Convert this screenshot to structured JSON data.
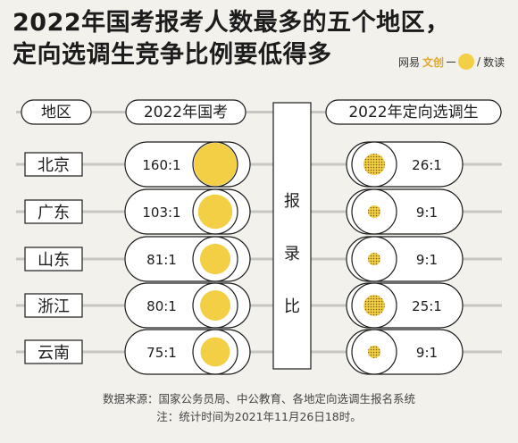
{
  "title_lines": [
    "2022年国考报考人数最多的五个地区，",
    "定向选调生竞争比例要低得多"
  ],
  "brand": {
    "text_left": "网易",
    "text_mid": "文创",
    "text_right": "数读"
  },
  "headers": {
    "region": "地区",
    "guokao": "2022年国考",
    "xuandiao": "2022年定向选调生",
    "middle": [
      "报",
      "录",
      "比"
    ]
  },
  "footer": {
    "source": "数据来源：国家公务员局、中公教育、各地定向选调生报名系统",
    "note": "注：统计时间为2021年11月26日18时。"
  },
  "colors": {
    "yellow": "#f2cf44",
    "dotted": "#c9a32c",
    "pill_bg": "#ffffff",
    "stroke": "#1c1c1c",
    "band": "#c9c7c2",
    "page_bg": "#f3f1ec"
  },
  "chart_data": {
    "type": "table",
    "categories": [
      "北京",
      "广东",
      "山东",
      "浙江",
      "云南"
    ],
    "series": [
      {
        "name": "2022年国考",
        "labels": [
          "160:1",
          "103:1",
          "81:1",
          "80:1",
          "75:1"
        ],
        "values": [
          160,
          103,
          81,
          80,
          75
        ]
      },
      {
        "name": "2022年定向选调生",
        "labels": [
          "26:1",
          "9:1",
          "9:1",
          "25:1",
          "9:1"
        ],
        "values": [
          26,
          9,
          9,
          25,
          9
        ]
      }
    ]
  }
}
